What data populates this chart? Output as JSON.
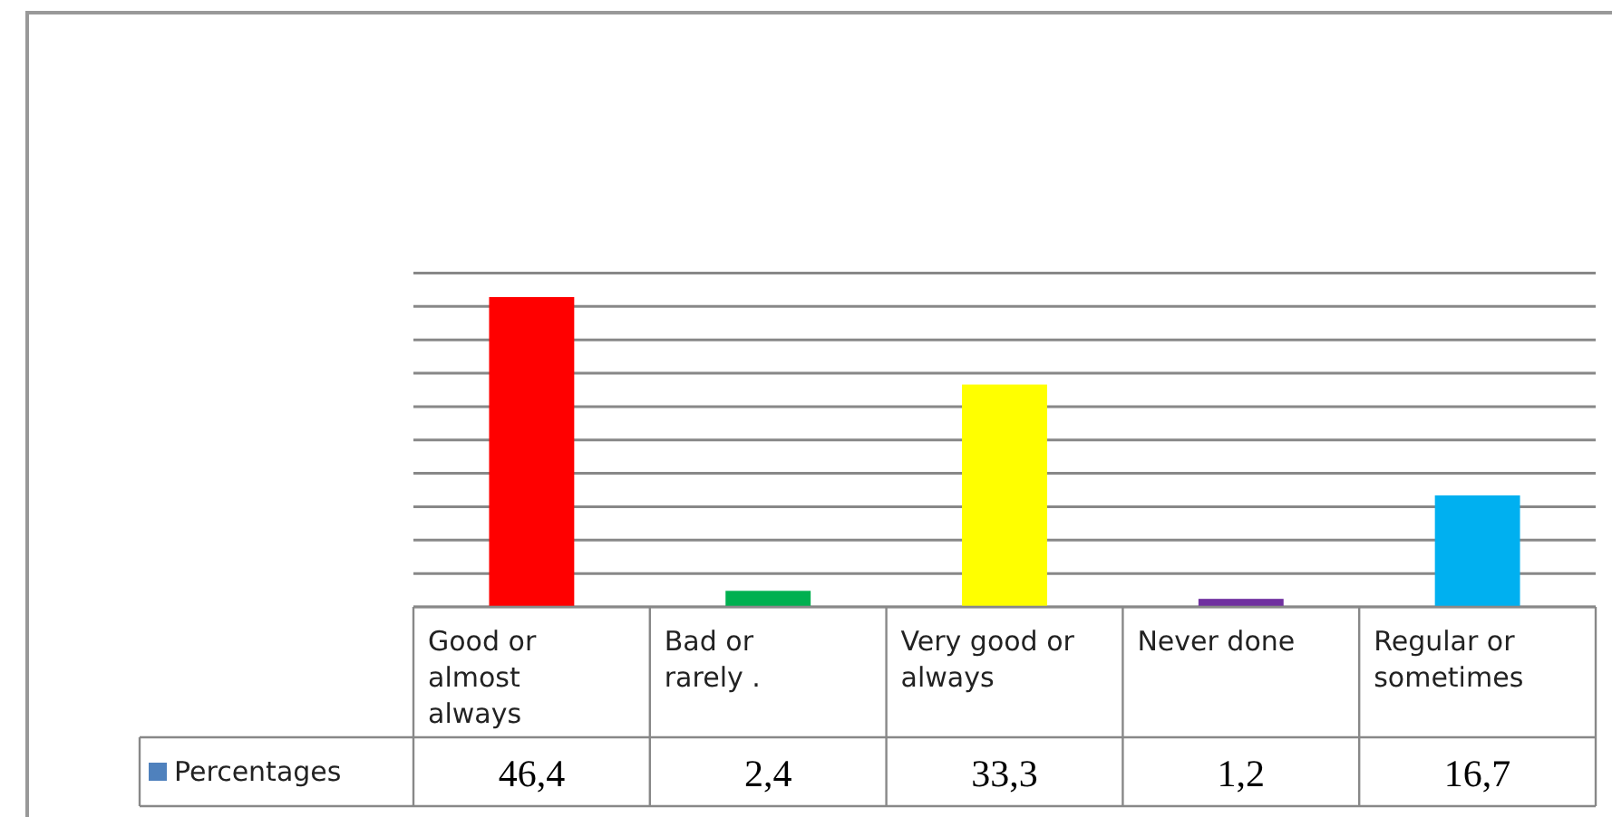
{
  "chart_data": {
    "type": "bar",
    "categories": [
      "Good or almost always",
      "Bad or rarely .",
      "Very good or always",
      "Never done",
      "Regular or sometimes"
    ],
    "series": [
      {
        "name": "Percentages",
        "color": "#4f81bd",
        "colors": [
          "#ff0000",
          "#00b050",
          "#ffff00",
          "#7030a0",
          "#00b0f0"
        ],
        "values": [
          46.4,
          2.4,
          33.3,
          1.2,
          16.7
        ],
        "value_labels": [
          "46,4",
          "2,4",
          "33,3",
          "1,2",
          "16,7"
        ]
      }
    ],
    "grid": true,
    "tick_labels": "x",
    "legend": "bottom left"
  }
}
